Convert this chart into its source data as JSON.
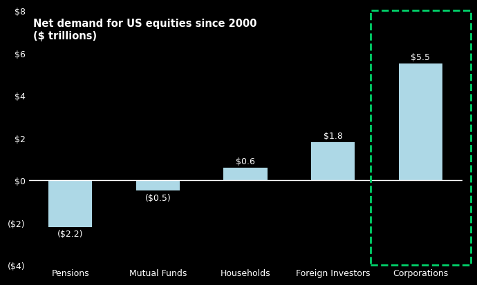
{
  "categories": [
    "Pensions",
    "Mutual Funds",
    "Households",
    "Foreign Investors",
    "Corporations"
  ],
  "values": [
    -2.2,
    -0.5,
    0.6,
    1.8,
    5.5
  ],
  "labels": [
    "($2.2)",
    "($0.5)",
    "$0.6",
    "$1.8",
    "$5.5"
  ],
  "bar_color": "#add8e6",
  "background_color": "#000000",
  "text_color": "#ffffff",
  "label_color": "#ffffff",
  "title_line1": "Net demand for US equities since 2000",
  "title_line2": "($ trillions)",
  "ylim": [
    -4,
    8
  ],
  "yticks": [
    -4,
    -2,
    0,
    2,
    4,
    6,
    8
  ],
  "ytick_labels": [
    "($4)",
    "($2)",
    "$0",
    "$2",
    "$4",
    "$6",
    "$8"
  ],
  "highlight_index": 4,
  "highlight_color": "#00d26a",
  "bar_width": 0.5
}
